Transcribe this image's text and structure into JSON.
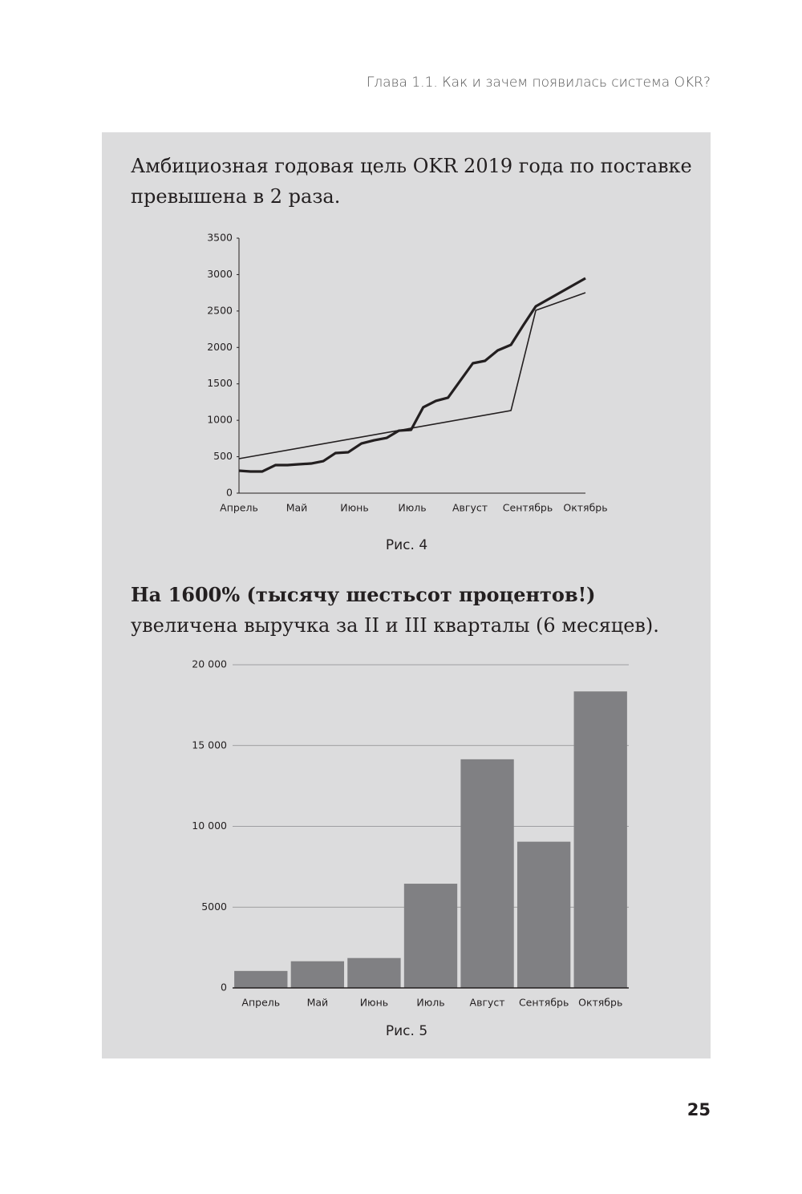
{
  "header": "Глава 1.1. Как и зачем появилась система OKR?",
  "page_number": "25",
  "chart_data": [
    {
      "type": "line",
      "title": "Амбициозная годовая цель OKR 2019 года по поставке превышена в 2 раза.",
      "caption": "Рис. 4",
      "xlim": [
        0,
        6
      ],
      "xticks": [
        {
          "value": 0,
          "label": "Апрель"
        },
        {
          "value": 1,
          "label": "Май"
        },
        {
          "value": 2,
          "label": "Июнь"
        },
        {
          "value": 3,
          "label": "Июль"
        },
        {
          "value": 4,
          "label": "Август"
        },
        {
          "value": 5,
          "label": "Сентябрь"
        },
        {
          "value": 6,
          "label": "Октябрь"
        }
      ],
      "ylim": [
        0,
        3500
      ],
      "yticks": [
        0,
        500,
        1000,
        1500,
        2000,
        2500,
        3000,
        3500
      ],
      "series": [
        {
          "color": "#231f20",
          "x": [
            0,
            0.2,
            0.4,
            0.63,
            0.84,
            1.03,
            1.25,
            1.46,
            1.67,
            1.89,
            2.12,
            2.34,
            2.56,
            2.77,
            2.98,
            3.19,
            3.41,
            3.62,
            3.84,
            4.05,
            4.26,
            4.48,
            4.71,
            4.92,
            5.14,
            6.0
          ],
          "values": [
            308,
            297,
            297,
            385,
            385,
            396,
            407,
            440,
            550,
            561,
            682,
            726,
            759,
            858,
            869,
            1178,
            1266,
            1310,
            1552,
            1783,
            1816,
            1959,
            2036,
            2300,
            2564,
            2950
          ]
        },
        {
          "color": "#231f20",
          "x": [
            0,
            4.71,
            5.14,
            6.0
          ],
          "values": [
            473,
            1134,
            2509,
            2751
          ]
        }
      ]
    },
    {
      "type": "bar",
      "title_bold": "На 1600% (тысячу шестьсот процентов!)",
      "title": "увеличена выручка за II и III кварталы (6 месяцев).",
      "caption": "Рис. 5",
      "categories": [
        "Апрель",
        "Май",
        "Июнь",
        "Июль",
        "Август",
        "Сентябрь",
        "Октябрь"
      ],
      "values": [
        1050,
        1650,
        1850,
        6450,
        14150,
        9050,
        18350
      ],
      "color": "#808083",
      "ylim": [
        0,
        20000
      ],
      "yticks": [
        0,
        5000,
        {
          "value": 10000,
          "label": "10 000"
        },
        {
          "value": 15000,
          "label": "15 000"
        },
        {
          "value": 20000,
          "label": "20 000"
        }
      ],
      "grid": true
    }
  ]
}
